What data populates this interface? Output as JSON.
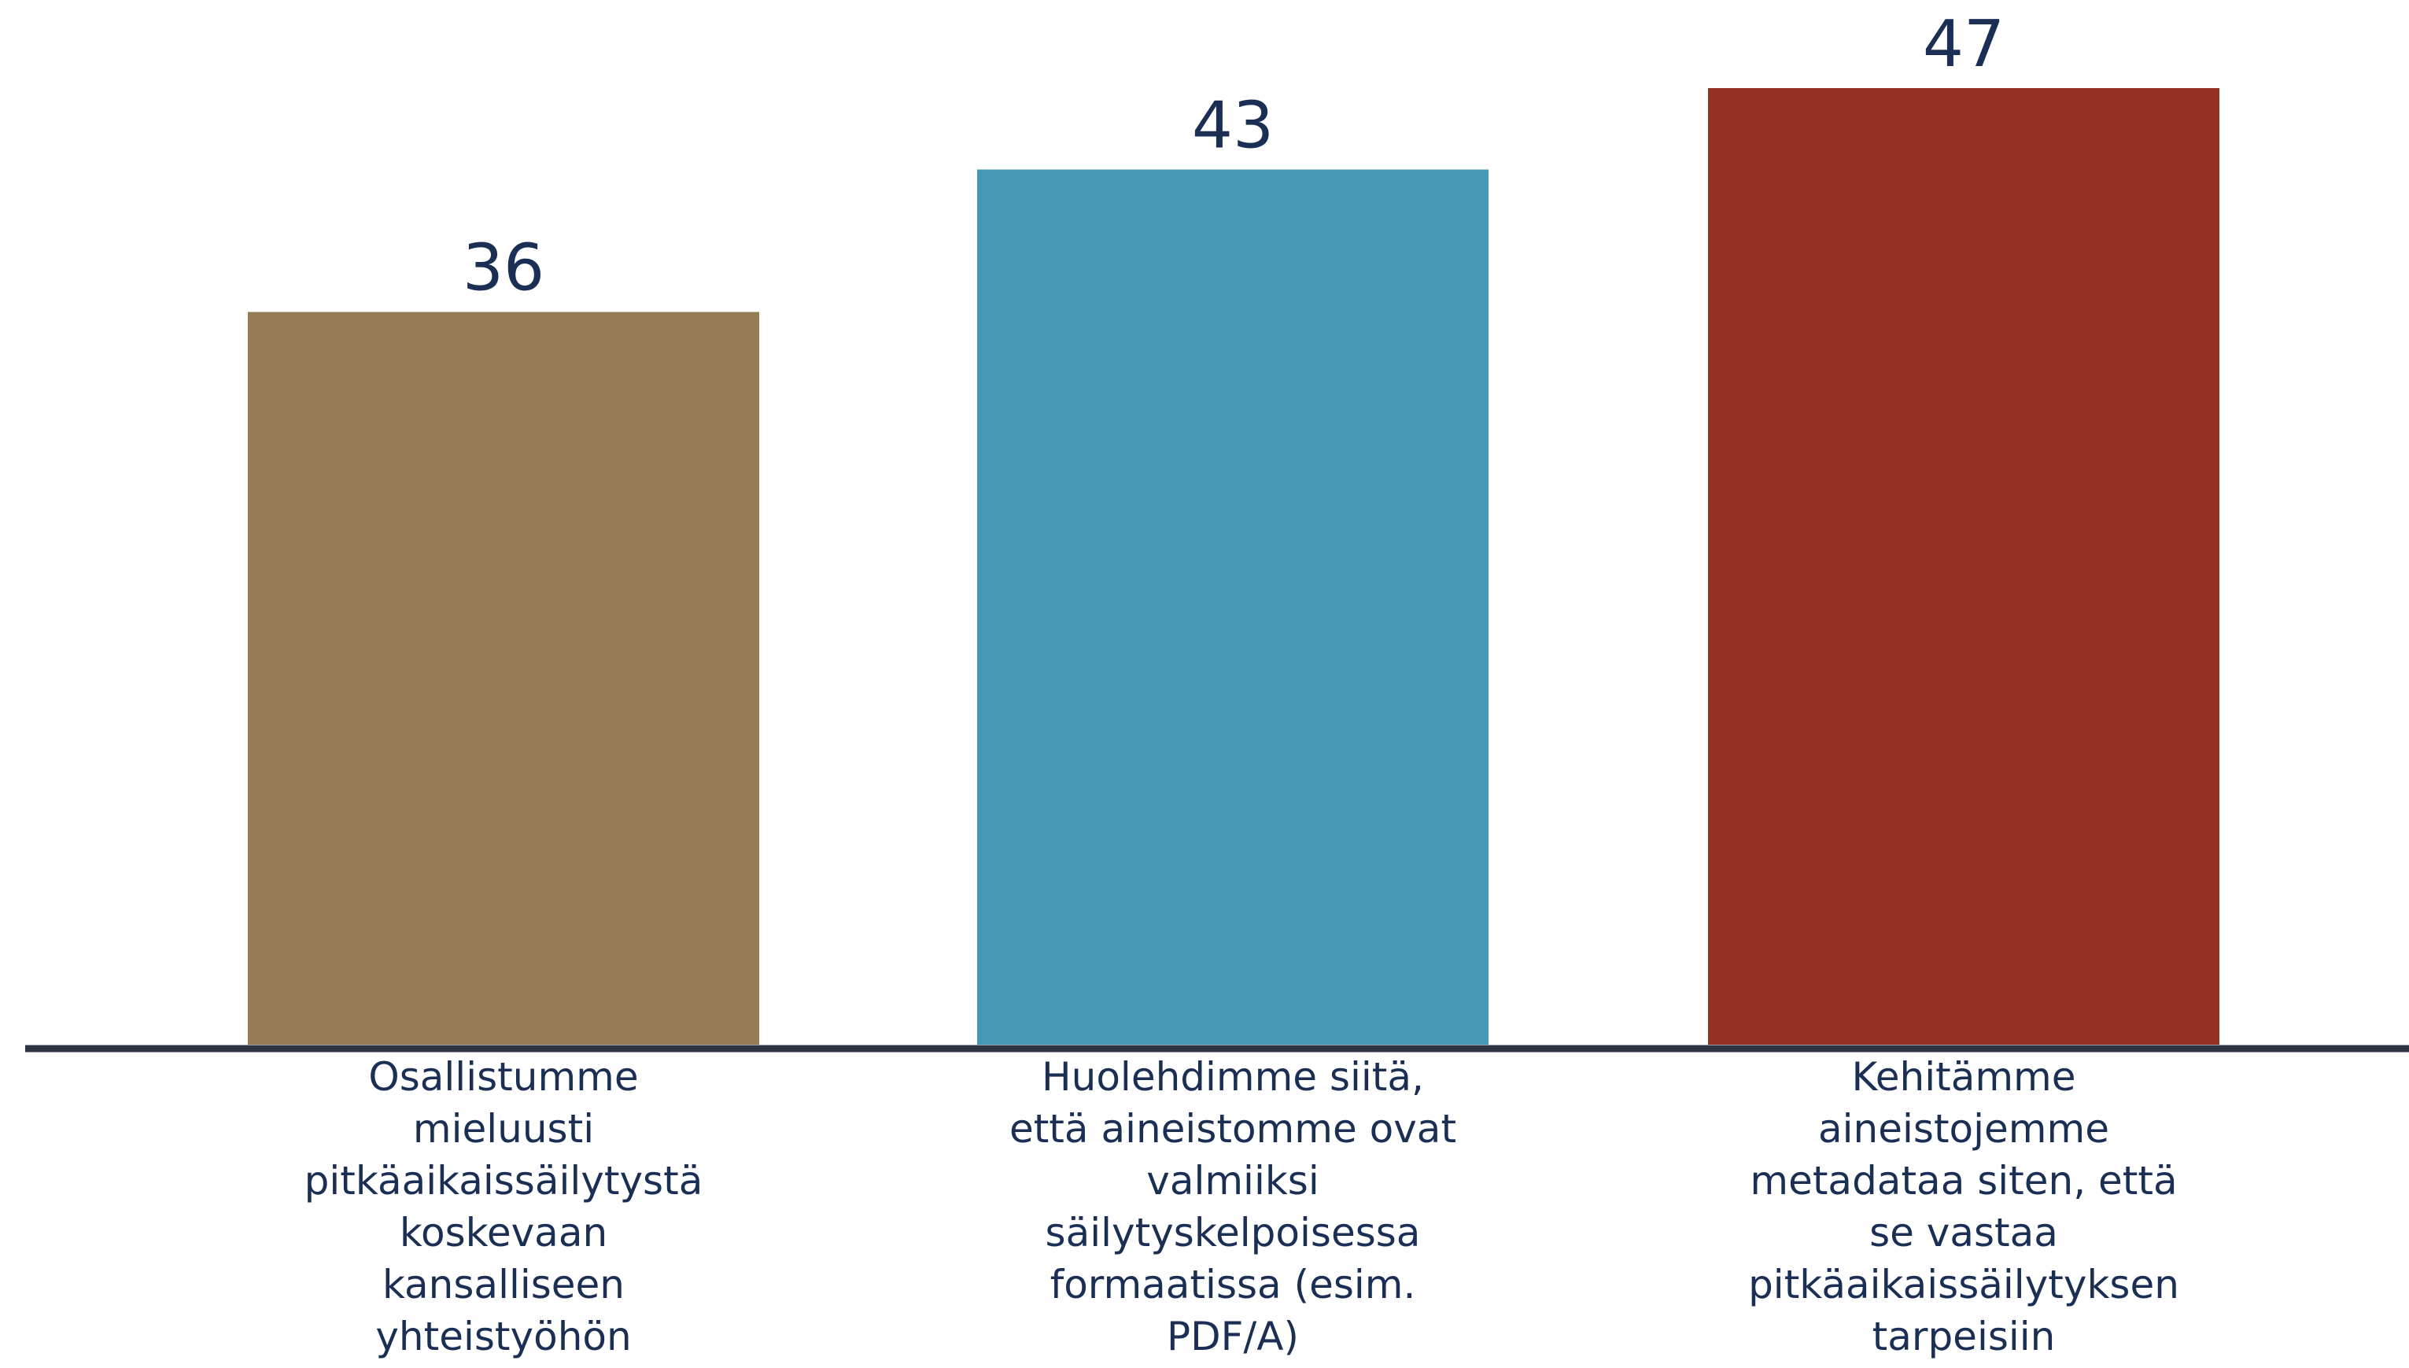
{
  "chart_data": {
    "type": "bar",
    "categories": [
      "Osallistumme\nmieluusti\npitkäaikaissäilytystä\nkoskevaan\nkansalliseen\nyhteistyöhön",
      "Huolehdimme siitä,\nettä aineistomme ovat\nvalmiiksi\nsäilytyskelpoisessa\nformaatissa (esim.\nPDF/A)",
      "Kehitämme\naineistojemme\nmetadataa siten, että\nse vastaa\npitkäaikaissäilytyksen\ntarpeisiin"
    ],
    "values": [
      36,
      43,
      47
    ],
    "colors": [
      "#957c54",
      "#4699b6",
      "#963224"
    ],
    "ylim": [
      0,
      47
    ],
    "grid": false,
    "legend": "none",
    "data_labels": true
  }
}
